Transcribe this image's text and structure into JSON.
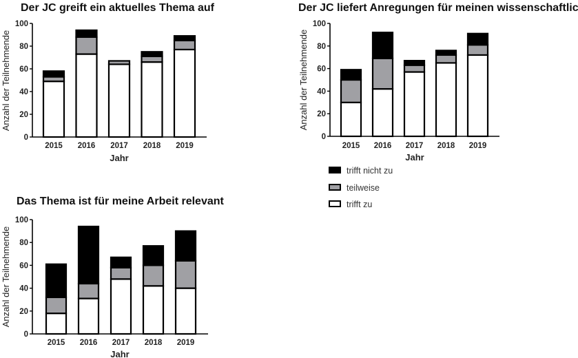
{
  "colors": {
    "trifft_nicht_zu": "#000000",
    "teilweise": "#a0a0a4",
    "trifft_zu": "#ffffff",
    "outline": "#000000"
  },
  "legend": {
    "items": [
      {
        "key": "trifft_nicht_zu",
        "label": "trifft nicht zu"
      },
      {
        "key": "teilweise",
        "label": "teilweise"
      },
      {
        "key": "trifft_zu",
        "label": "trifft zu"
      }
    ],
    "placement": "right-middle"
  },
  "chart_data": [
    {
      "type": "bar",
      "stacked": true,
      "title": "Der JC greift ein aktuelles Thema auf",
      "xlabel": "Jahr",
      "ylabel": "Anzahl der Teilnehmende",
      "ylim": [
        0,
        100
      ],
      "yticks": [
        "0",
        "20",
        "40",
        "60",
        "80",
        "100"
      ],
      "categories": [
        "2015",
        "2016",
        "2017",
        "2018",
        "2019"
      ],
      "series": [
        {
          "name": "trifft zu",
          "values": [
            49,
            73,
            64,
            66,
            77
          ]
        },
        {
          "name": "teilweise",
          "values": [
            4,
            15,
            3,
            5,
            8
          ]
        },
        {
          "name": "trifft nicht zu",
          "values": [
            5,
            6,
            0,
            4,
            4
          ]
        }
      ]
    },
    {
      "type": "bar",
      "stacked": true,
      "title": "Der JC liefert Anregungen für meinen wissenschaftlichen Alltag",
      "xlabel": "Jahr",
      "ylabel": "Anzahl der Teilnehmende",
      "ylim": [
        0,
        100
      ],
      "yticks": [
        "0",
        "20",
        "40",
        "60",
        "80",
        "100"
      ],
      "categories": [
        "2015",
        "2016",
        "2017",
        "2018",
        "2019"
      ],
      "series": [
        {
          "name": "trifft zu",
          "values": [
            30,
            42,
            57,
            65,
            72
          ]
        },
        {
          "name": "teilweise",
          "values": [
            20,
            27,
            6,
            7,
            9
          ]
        },
        {
          "name": "trifft nicht zu",
          "values": [
            9,
            23,
            4,
            4,
            10
          ]
        }
      ]
    },
    {
      "type": "bar",
      "stacked": true,
      "title": "Das Thema ist für meine Arbeit relevant",
      "xlabel": "Jahr",
      "ylabel": "Anzahl der Teilnehmende",
      "ylim": [
        0,
        100
      ],
      "yticks": [
        "0",
        "20",
        "40",
        "60",
        "80",
        "100"
      ],
      "categories": [
        "2015",
        "2016",
        "2017",
        "2018",
        "2019"
      ],
      "series": [
        {
          "name": "trifft zu",
          "values": [
            18,
            31,
            48,
            42,
            40
          ]
        },
        {
          "name": "teilweise",
          "values": [
            14,
            13,
            10,
            18,
            24
          ]
        },
        {
          "name": "trifft nicht zu",
          "values": [
            29,
            50,
            9,
            17,
            26
          ]
        }
      ]
    }
  ]
}
